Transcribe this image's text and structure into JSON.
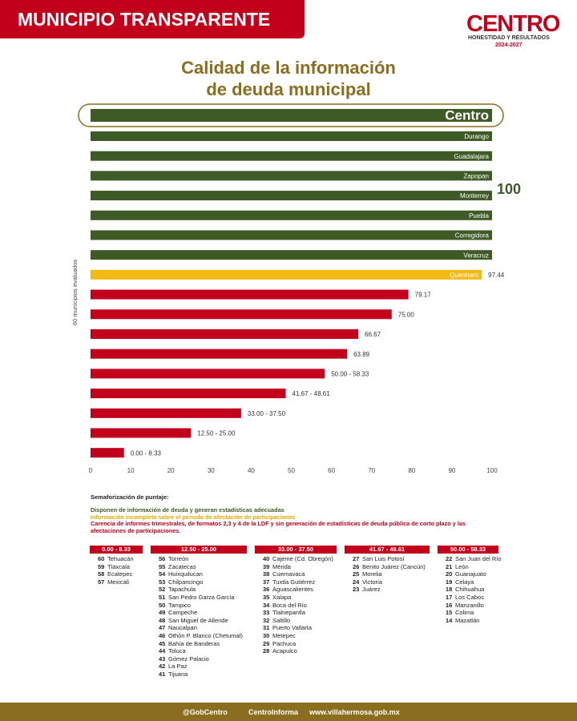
{
  "header": {
    "banner": "MUNICIPIO TRANSPARENTE",
    "logo": "CENTRO",
    "motto": "HONESTIDAD Y RESULTADOS",
    "period": "2024-2027"
  },
  "chart_data": {
    "type": "bar",
    "orientation": "horizontal",
    "title": [
      "Calidad de la información",
      "de deuda municipal"
    ],
    "ylabel": "60 municipios evaluados",
    "categories": [
      "Centro",
      "Durango",
      "Guadalajara",
      "Zapopan",
      "Monterrey",
      "Puebla",
      "Corregidora",
      "Veracruz",
      "Querétaro",
      null,
      null,
      null,
      null,
      null,
      null,
      null,
      null,
      null
    ],
    "values": [
      100,
      100,
      100,
      100,
      100,
      100,
      100,
      100,
      97.44,
      79.17,
      75,
      66.67,
      63.89,
      58.33,
      48.61,
      37.5,
      25,
      8.33
    ],
    "value_labels": [
      null,
      null,
      null,
      null,
      null,
      null,
      null,
      null,
      "97.44",
      "79.17",
      "75.00",
      "66.67",
      "63.89",
      "50.00 - 58.33",
      "41.67 - 48.61",
      "33.00 - 37.50",
      "12.50 - 25.00",
      "0.00 - 8.33"
    ],
    "colors": [
      "#3e5a27",
      "#3e5a27",
      "#3e5a27",
      "#3e5a27",
      "#3e5a27",
      "#3e5a27",
      "#3e5a27",
      "#3e5a27",
      "#f3b915",
      "#c3001b",
      "#c3001b",
      "#c3001b",
      "#c3001b",
      "#c3001b",
      "#c3001b",
      "#c3001b",
      "#c3001b",
      "#c3001b"
    ],
    "annotation": "100",
    "xlim": [
      0,
      100
    ],
    "xticks": [
      0,
      10,
      20,
      30,
      40,
      50,
      60,
      70,
      80,
      90,
      100
    ]
  },
  "legend": {
    "title": "Semaforización de puntaje:",
    "items": [
      {
        "text": "Disponen de información de deuda y generan estadísticas adecuadas",
        "color": "#3e5a27"
      },
      {
        "text": "Información incompleta sobre el periodo de afectación de participaciones",
        "color": "#e8a900"
      },
      {
        "text": "Carencia de informes trimestrales, de formatos 2,3 y 4 de la LDF y sin generación de estadísticas de deuda pública de corto plazo y las afectaciones de participaciones.",
        "color": "#c3001b"
      }
    ]
  },
  "groups": [
    {
      "range": "0.00 - 8.33",
      "items": [
        {
          "rank": 60,
          "name": "Tehuacán"
        },
        {
          "rank": 59,
          "name": "Tlaxcala"
        },
        {
          "rank": 58,
          "name": "Ecatepec"
        },
        {
          "rank": 57,
          "name": "Mexicali"
        }
      ]
    },
    {
      "range": "12.50 - 25.00",
      "items": [
        {
          "rank": 56,
          "name": "Torreón"
        },
        {
          "rank": 55,
          "name": "Zacatecas"
        },
        {
          "rank": 54,
          "name": "Huixquilucan"
        },
        {
          "rank": 53,
          "name": "Chilpancingo"
        },
        {
          "rank": 52,
          "name": "Tapachula"
        },
        {
          "rank": 51,
          "name": "San Pedro Garza García"
        },
        {
          "rank": 50,
          "name": "Tampico"
        },
        {
          "rank": 49,
          "name": "Campeche"
        },
        {
          "rank": 48,
          "name": "San Miguel de Allende"
        },
        {
          "rank": 47,
          "name": "Naucalpan"
        },
        {
          "rank": 46,
          "name": "Othón P. Blanco (Chetumal)"
        },
        {
          "rank": 45,
          "name": "Bahía de Banderas"
        },
        {
          "rank": 44,
          "name": "Toluca"
        },
        {
          "rank": 43,
          "name": "Gómez Palacio"
        },
        {
          "rank": 42,
          "name": "La Paz"
        },
        {
          "rank": 41,
          "name": "Tijuana"
        }
      ]
    },
    {
      "range": "33.00 - 37.50",
      "items": [
        {
          "rank": 40,
          "name": "Cajeme (Cd. Obregón)"
        },
        {
          "rank": 39,
          "name": "Mérida"
        },
        {
          "rank": 38,
          "name": "Cuernavaca"
        },
        {
          "rank": 37,
          "name": "Tuxtla Gutiérrez"
        },
        {
          "rank": 36,
          "name": "Aguascalientes"
        },
        {
          "rank": 35,
          "name": "Xalapa"
        },
        {
          "rank": 34,
          "name": "Boca del Río"
        },
        {
          "rank": 33,
          "name": "Tlalnepantla"
        },
        {
          "rank": 32,
          "name": "Saltillo"
        },
        {
          "rank": 31,
          "name": "Puerto Vallarta"
        },
        {
          "rank": 30,
          "name": "Metepec"
        },
        {
          "rank": 29,
          "name": "Pachuca"
        },
        {
          "rank": 28,
          "name": "Acapulco"
        }
      ]
    },
    {
      "range": "41.67 - 48.61",
      "items": [
        {
          "rank": 27,
          "name": "San Luis Potosí"
        },
        {
          "rank": 26,
          "name": "Benito Juárez (Cancún)"
        },
        {
          "rank": 25,
          "name": "Morelia"
        },
        {
          "rank": 24,
          "name": "Victoria"
        },
        {
          "rank": 23,
          "name": "Juárez"
        }
      ]
    },
    {
      "range": "50.00 - 58.33",
      "items": [
        {
          "rank": 22,
          "name": "San Juan del Río"
        },
        {
          "rank": 21,
          "name": "León"
        },
        {
          "rank": 20,
          "name": "Guanajuato"
        },
        {
          "rank": 19,
          "name": "Celaya"
        },
        {
          "rank": 18,
          "name": "Chihuahua"
        },
        {
          "rank": 17,
          "name": "Los Cabos"
        },
        {
          "rank": 16,
          "name": "Manzanillo"
        },
        {
          "rank": 15,
          "name": "Colima"
        },
        {
          "rank": 14,
          "name": "Mazatlán"
        }
      ]
    }
  ],
  "footer": {
    "social1": "@GobCentro",
    "social2": "CentroInforma",
    "website": "www.villahermosa.gob.mx"
  }
}
